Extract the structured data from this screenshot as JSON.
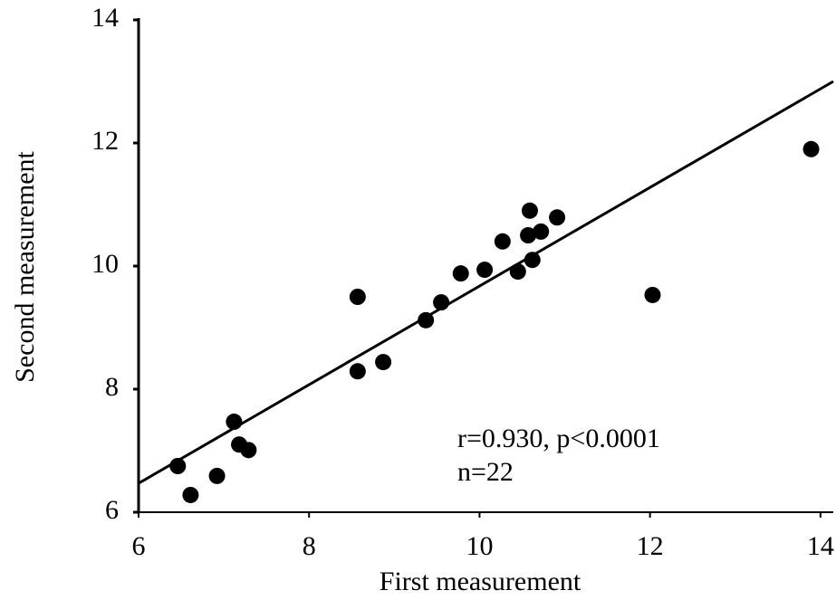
{
  "chart_data": {
    "type": "scatter",
    "x_label": "First measurement",
    "y_label": "Second measurement",
    "annotations": [
      "r=0.930, p<0.0001",
      "n=22"
    ],
    "x": [
      6.46,
      6.61,
      6.92,
      7.12,
      7.18,
      7.29,
      8.57,
      8.57,
      8.87,
      9.37,
      9.55,
      9.78,
      10.06,
      10.27,
      10.45,
      10.59,
      10.57,
      10.62,
      10.72,
      10.91,
      12.03,
      13.89
    ],
    "y": [
      6.75,
      6.28,
      6.59,
      7.47,
      7.1,
      7.01,
      9.5,
      8.29,
      8.44,
      9.12,
      9.41,
      9.88,
      9.94,
      10.4,
      9.91,
      10.9,
      10.5,
      10.1,
      10.56,
      10.79,
      9.53,
      11.9
    ],
    "color": "#000000",
    "fit": {
      "x": [
        6,
        14.15
      ],
      "y": [
        6.47,
        13.0
      ]
    },
    "xlim": [
      6,
      14.15
    ],
    "ylim": [
      6,
      14
    ],
    "xticks": [
      6,
      8,
      10,
      12,
      14
    ],
    "yticks": [
      6,
      8,
      10,
      12,
      14
    ]
  }
}
